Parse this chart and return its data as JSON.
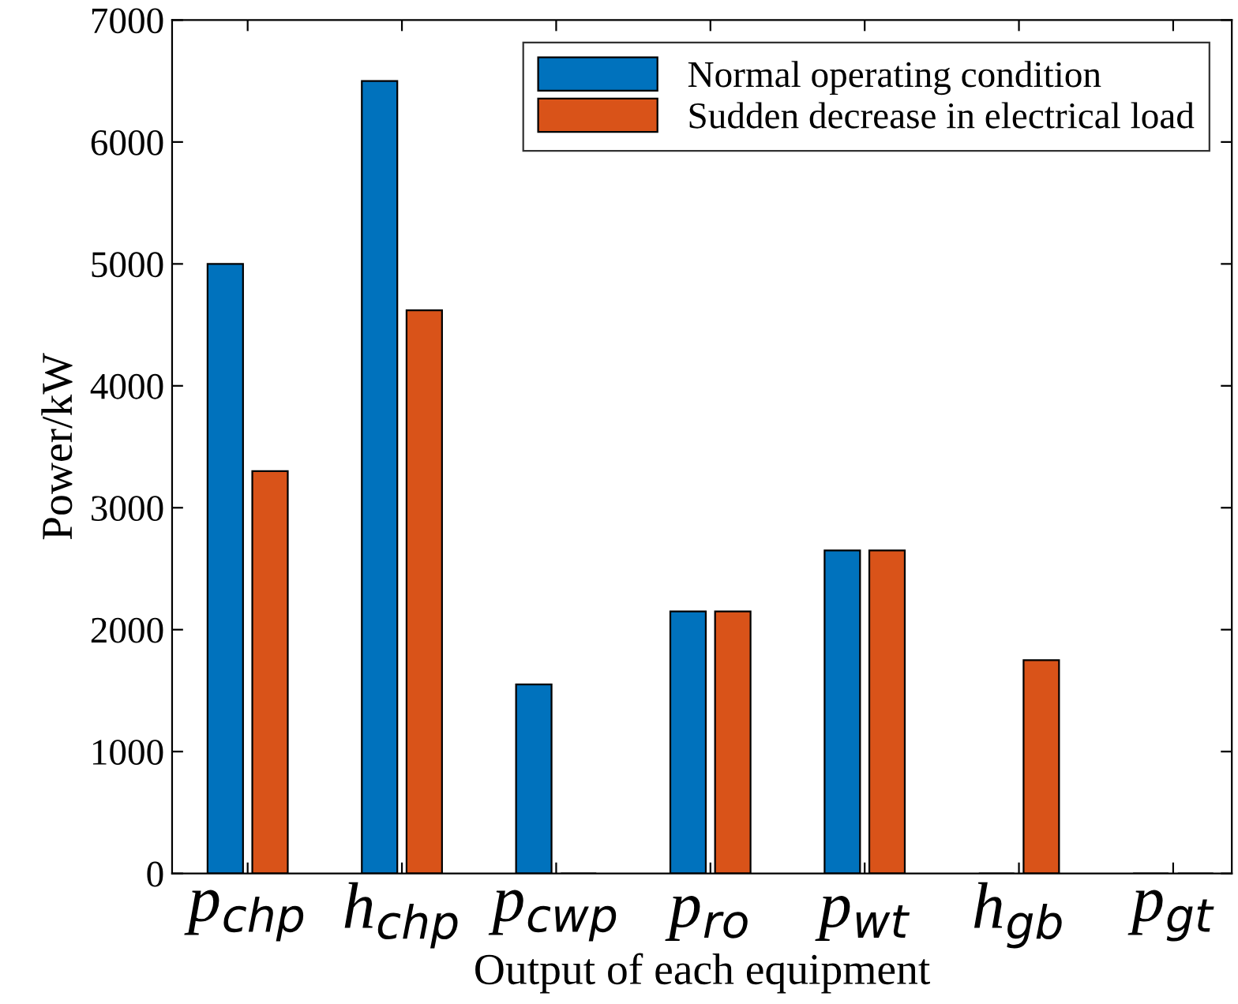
{
  "chart_data": {
    "type": "bar",
    "xlabel": "Output of each equipment",
    "ylabel": "Power/kW",
    "categories": [
      "p$_{chp}$",
      "h$_{chp}$",
      "p$_{cwp}$",
      "p$_{ro}$",
      "p$_{wt}$",
      "h$_{gb}$",
      "p$_{gt}$"
    ],
    "series": [
      {
        "name": "Normal operating condition",
        "color": "#0072bd",
        "values": [
          5000,
          6500,
          1550,
          2150,
          2650,
          0,
          0
        ]
      },
      {
        "name": "Sudden decrease in electrical load",
        "color": "#d95319",
        "values": [
          3300,
          4620,
          0,
          2150,
          2650,
          1750,
          0
        ]
      }
    ],
    "ylim": [
      0,
      7000
    ],
    "yticks": [
      0,
      1000,
      2000,
      3000,
      4000,
      5000,
      6000,
      7000
    ],
    "grid": false,
    "legend": "top right"
  }
}
